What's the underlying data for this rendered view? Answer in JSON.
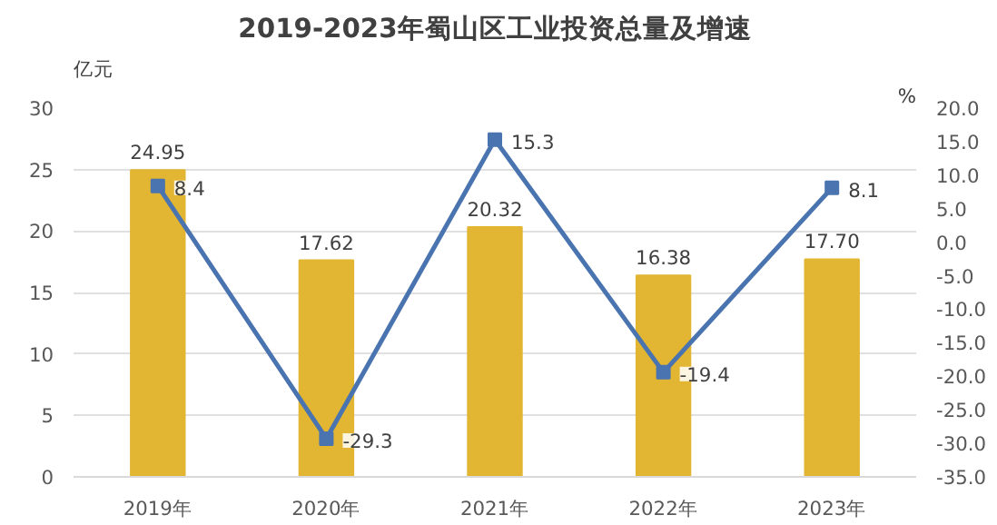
{
  "chart_data": {
    "type": "bar",
    "title": "2019-2023年蜀山区工业投资总量及增速",
    "ylabel": "亿元",
    "y2label": "%",
    "categories": [
      "2019年",
      "2020年",
      "2021年",
      "2022年",
      "2023年"
    ],
    "series": [
      {
        "color": "#e2b532",
        "values": [
          24.95,
          17.62,
          20.32,
          16.38,
          17.7
        ],
        "value_labels": [
          "24.95",
          "17.62",
          "20.32",
          "16.38",
          "17.70"
        ]
      },
      {
        "type": "line",
        "axis": "y2",
        "color": "#4a74b0",
        "marker": "square",
        "values": [
          8.4,
          -29.3,
          15.3,
          -19.4,
          8.1
        ],
        "value_labels": [
          "8.4",
          "-29.3",
          "15.3",
          "-19.4",
          "8.1"
        ]
      }
    ],
    "ylim": [
      0,
      30
    ],
    "yticks": [
      0,
      5,
      10,
      15,
      20,
      25,
      30
    ],
    "y2lim": [
      -35,
      20
    ],
    "y2ticks": [
      {
        "value": 20,
        "label": "20.0"
      },
      {
        "value": 15,
        "label": "15.0"
      },
      {
        "value": 10,
        "label": "10.0"
      },
      {
        "value": 5,
        "label": "5.0"
      },
      {
        "value": 0,
        "label": "0.0"
      },
      {
        "value": -5,
        "label": "-5.0"
      },
      {
        "value": -10,
        "label": "-10.0"
      },
      {
        "value": -15,
        "label": "-15.0"
      },
      {
        "value": -20,
        "label": "-20.0"
      },
      {
        "value": -25,
        "label": "-25.0"
      },
      {
        "value": -30,
        "label": "-30.0"
      },
      {
        "value": -35,
        "label": "-35.0"
      }
    ],
    "grid": "y",
    "legend": false
  }
}
